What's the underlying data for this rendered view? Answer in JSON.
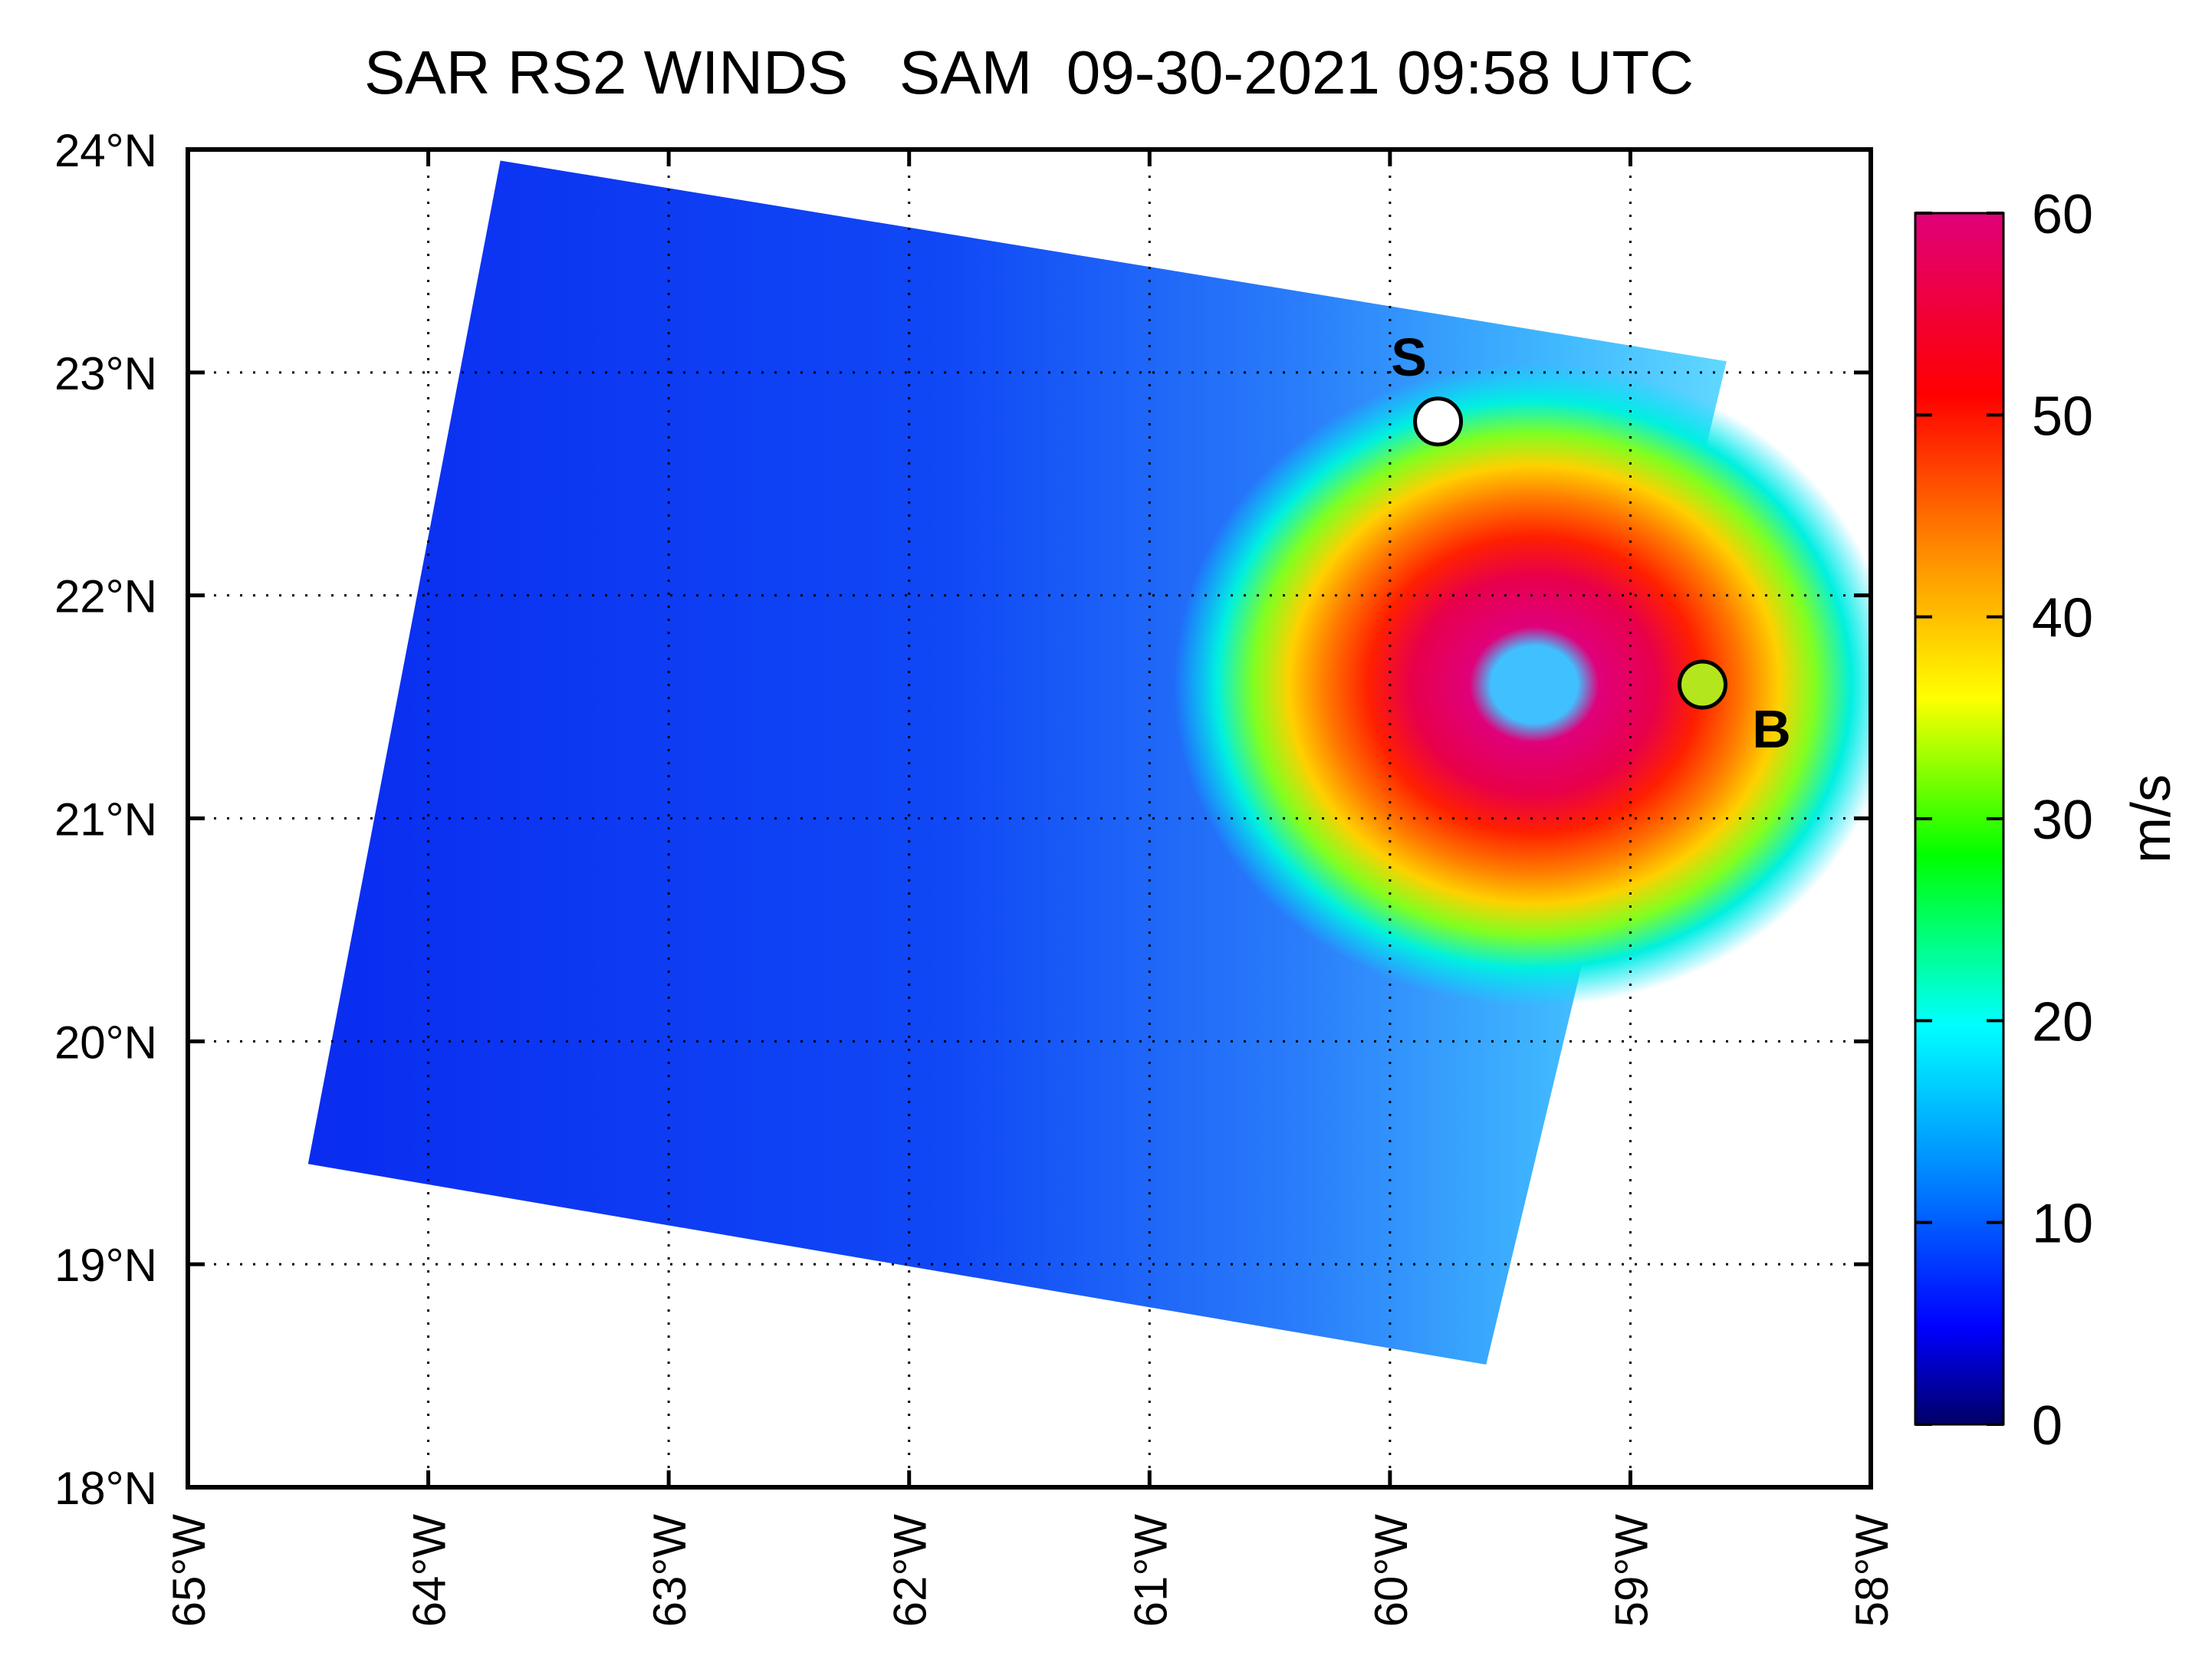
{
  "title": "SAR RS2 WINDS   SAM  09-30-2021 09:58 UTC",
  "map": {
    "lat_labels": [
      "24°N",
      "23°N",
      "22°N",
      "21°N",
      "20°N",
      "19°N",
      "18°N"
    ],
    "lon_labels": [
      "65°W",
      "64°W",
      "63°W",
      "62°W",
      "61°W",
      "60°W",
      "59°W",
      "58°W"
    ],
    "lat_range": [
      18,
      24
    ],
    "lon_range": [
      -65,
      -58
    ],
    "grid": "dotted",
    "swath_corners": [
      [
        -63.7,
        23.95
      ],
      [
        -58.6,
        23.05
      ],
      [
        -59.6,
        18.55
      ],
      [
        -64.5,
        19.45
      ]
    ],
    "storm_eye": {
      "lon": -59.4,
      "lat": 21.6
    },
    "markers": [
      {
        "label": "S",
        "lon": -59.8,
        "lat": 22.78,
        "fill": "#ffffff"
      },
      {
        "label": "B",
        "lon": -58.7,
        "lat": 21.6,
        "fill": "#b4e61e"
      }
    ]
  },
  "colorbar": {
    "label": "m/s",
    "min": 0,
    "max": 60,
    "tick_labels": [
      "60",
      "50",
      "40",
      "30",
      "20",
      "10",
      "0"
    ],
    "colors": [
      "#000066",
      "#0000ff",
      "#00a0ff",
      "#00ffff",
      "#00ff00",
      "#ffff00",
      "#ff8c00",
      "#ff0000",
      "#e0007a"
    ]
  }
}
